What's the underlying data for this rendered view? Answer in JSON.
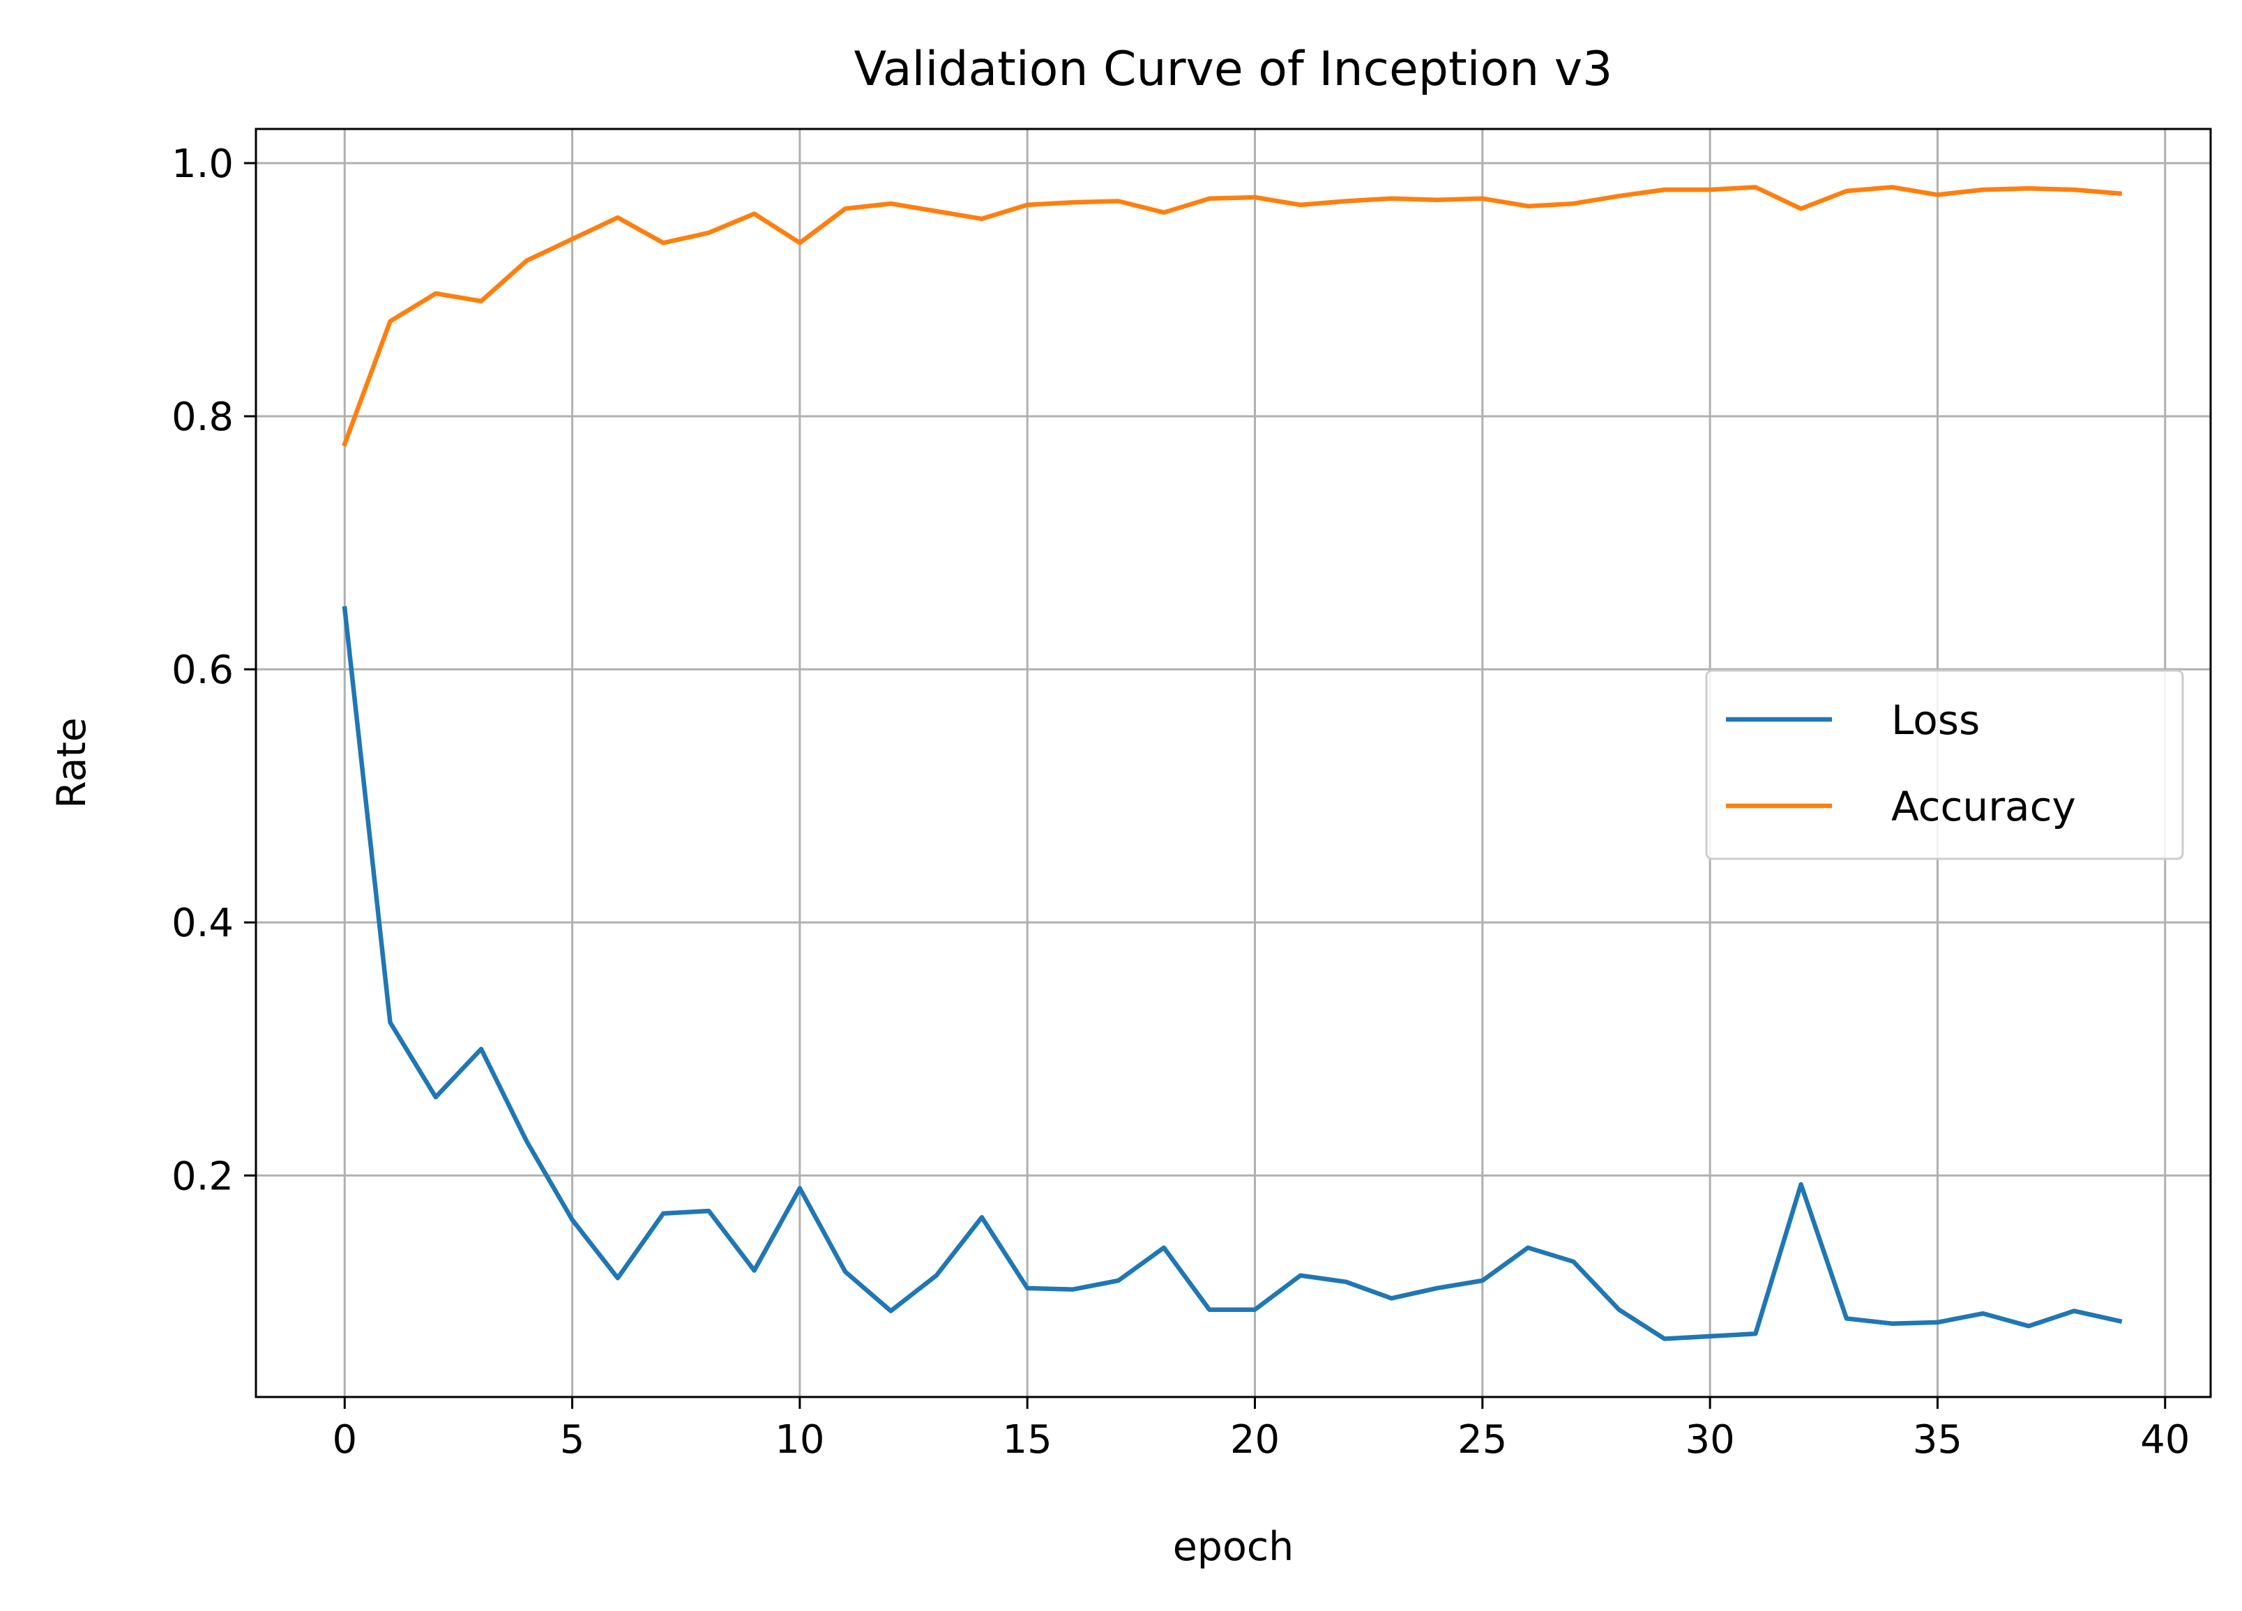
{
  "chart_data": {
    "type": "line",
    "title": "Validation Curve of Inception v3",
    "xlabel": "epoch",
    "ylabel": "Rate",
    "xlim": [
      -1.95,
      41.0
    ],
    "ylim": [
      0.025,
      1.027
    ],
    "x_ticks": [
      0,
      5,
      10,
      15,
      20,
      25,
      30,
      35,
      40
    ],
    "y_ticks": [
      0.2,
      0.4,
      0.6,
      0.8,
      1.0
    ],
    "x_tick_labels": [
      "0",
      "5",
      "10",
      "15",
      "20",
      "25",
      "30",
      "35",
      "40"
    ],
    "y_tick_labels": [
      "0.2",
      "0.4",
      "0.6",
      "0.8",
      "1.0"
    ],
    "grid": true,
    "legend_position": "center-right",
    "x": [
      0,
      1,
      2,
      3,
      4,
      5,
      6,
      7,
      8,
      9,
      10,
      11,
      12,
      13,
      14,
      15,
      16,
      17,
      18,
      19,
      20,
      21,
      22,
      23,
      24,
      25,
      26,
      27,
      28,
      29,
      30,
      31,
      32,
      33,
      34,
      35,
      36,
      37,
      38,
      39
    ],
    "series": [
      {
        "name": "Loss",
        "color": "#1f77b4",
        "values": [
          0.648,
          0.321,
          0.262,
          0.3,
          0.227,
          0.165,
          0.119,
          0.17,
          0.172,
          0.125,
          0.19,
          0.124,
          0.093,
          0.121,
          0.167,
          0.111,
          0.11,
          0.117,
          0.143,
          0.094,
          0.094,
          0.121,
          0.116,
          0.103,
          0.111,
          0.117,
          0.143,
          0.132,
          0.094,
          0.071,
          0.073,
          0.075,
          0.193,
          0.087,
          0.083,
          0.084,
          0.091,
          0.081,
          0.093,
          0.085
        ]
      },
      {
        "name": "Accuracy",
        "color": "#ff7f0e",
        "values": [
          0.778,
          0.875,
          0.897,
          0.891,
          0.923,
          0.94,
          0.957,
          0.937,
          0.945,
          0.96,
          0.937,
          0.964,
          0.968,
          0.962,
          0.956,
          0.967,
          0.969,
          0.97,
          0.961,
          0.972,
          0.973,
          0.967,
          0.97,
          0.972,
          0.971,
          0.972,
          0.966,
          0.968,
          0.974,
          0.979,
          0.979,
          0.981,
          0.964,
          0.978,
          0.981,
          0.975,
          0.979,
          0.98,
          0.979,
          0.976
        ]
      }
    ]
  }
}
